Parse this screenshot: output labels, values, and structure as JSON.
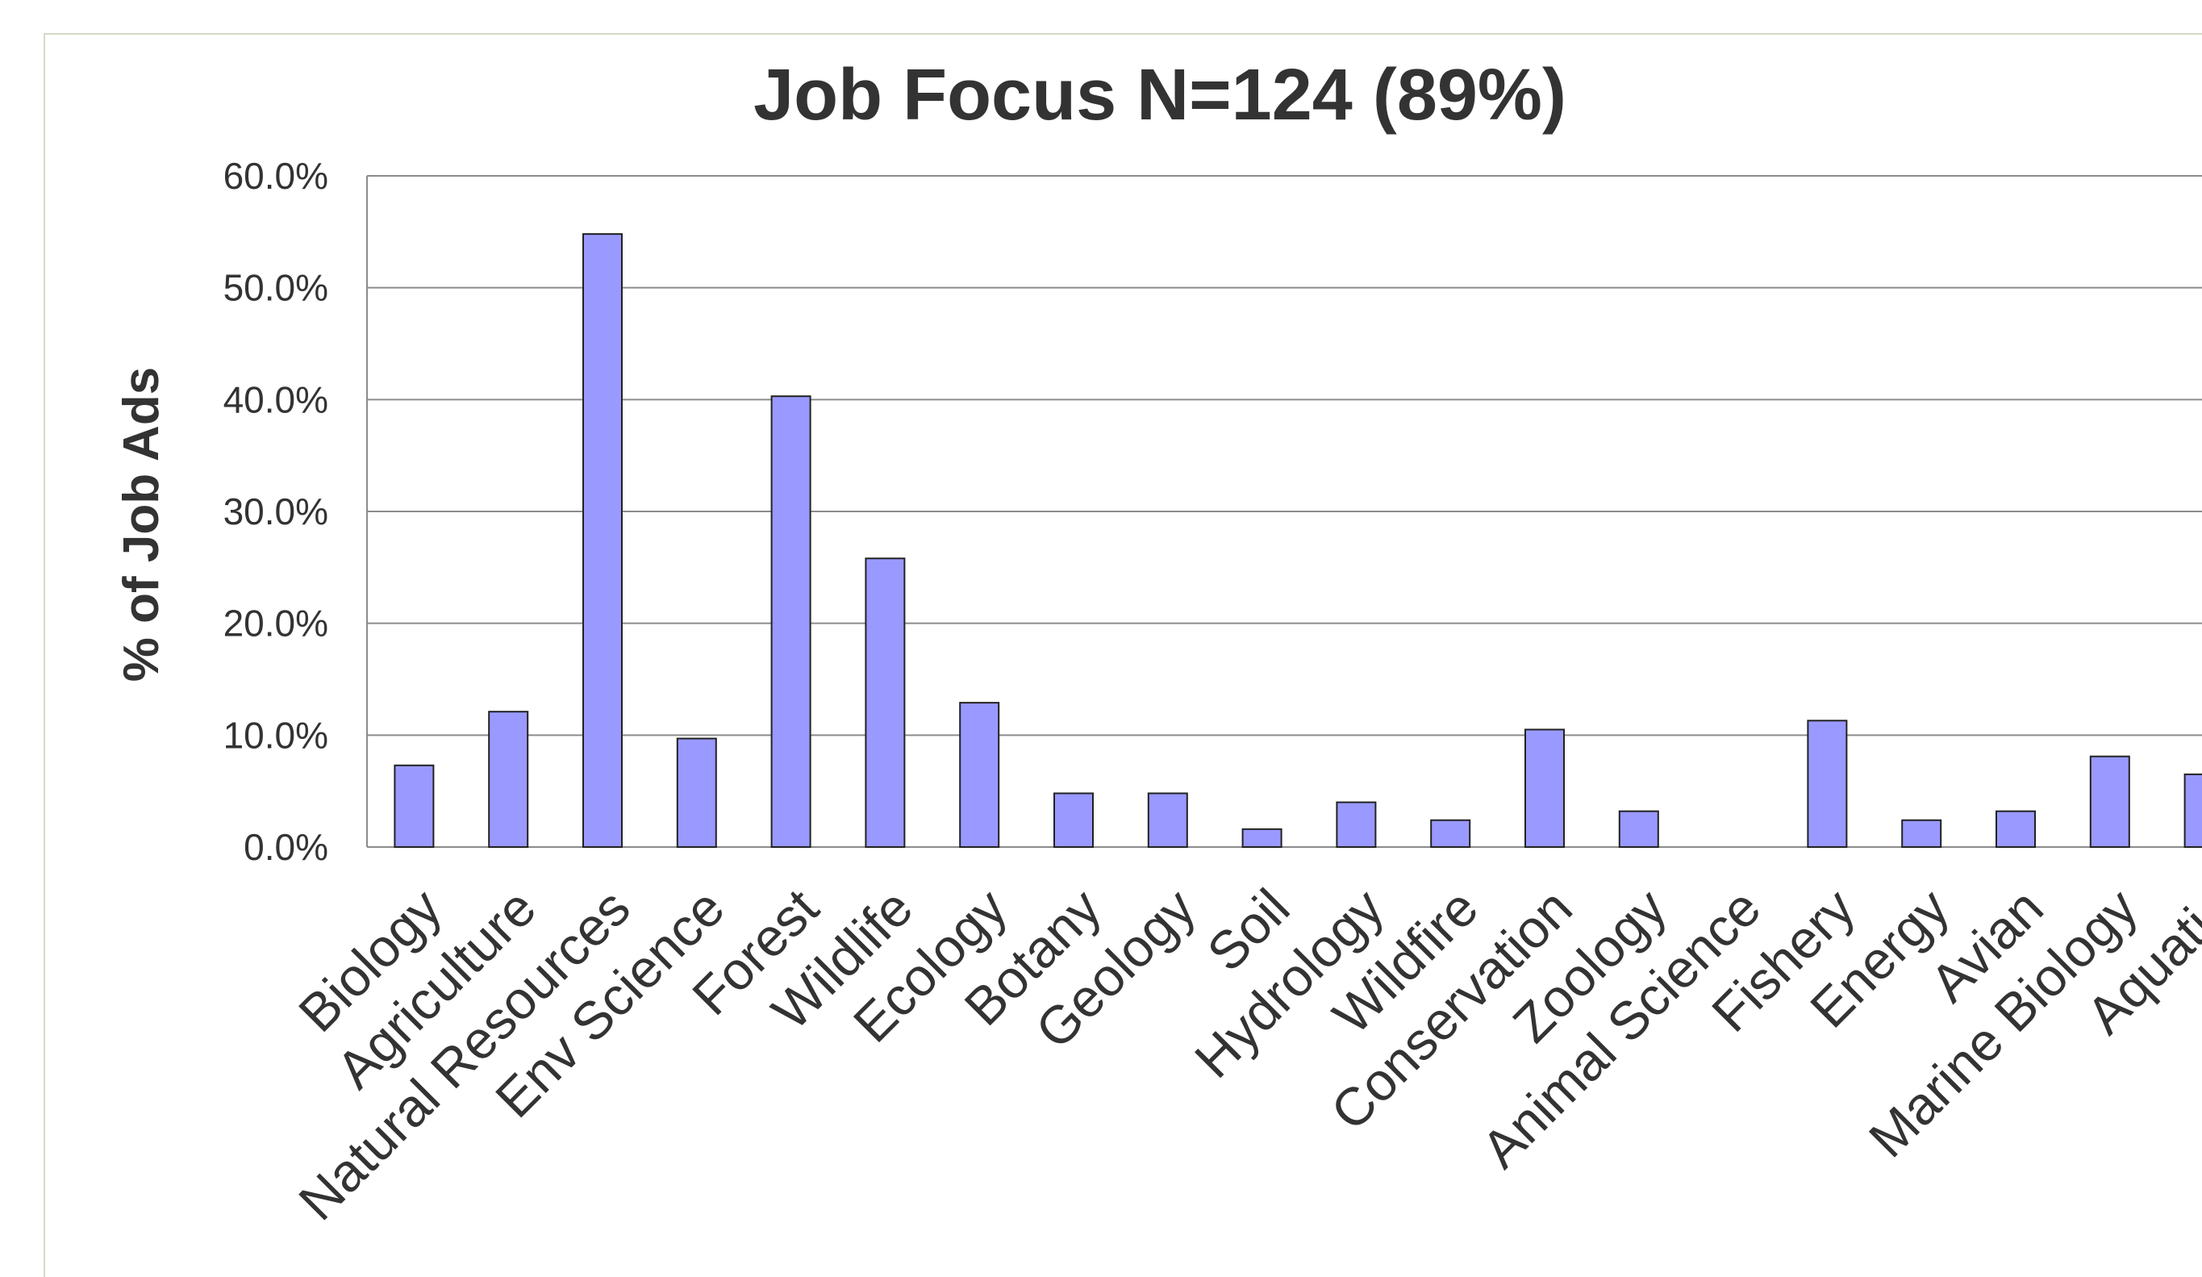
{
  "colors": {
    "bar_fill": "#9999ff",
    "bar_stroke": "#222222",
    "grid": "#8c8c8c",
    "text": "#333333",
    "frame": "#d4dcc4"
  },
  "chart_data": {
    "type": "bar",
    "title": "Job Focus N=124 (89%)",
    "xlabel": "",
    "ylabel": "% of Job Ads",
    "ylim": [
      0,
      60
    ],
    "grid": true,
    "yticks": [
      "0.0%",
      "10.0%",
      "20.0%",
      "30.0%",
      "40.0%",
      "50.0%",
      "60.0%"
    ],
    "categories": [
      "Biology",
      "Agriculture",
      "Natural Resources",
      "Env Science",
      "Forest",
      "Wildlife",
      "Ecology",
      "Botany",
      "Geology",
      "Soil",
      "Hydrology",
      "Wildfire",
      "Conservation",
      "Zoology",
      "Animal Science",
      "Fishery",
      "Energy",
      "Avian",
      "Marine Biology",
      "Aquatic"
    ],
    "values": [
      7.3,
      12.1,
      54.8,
      9.7,
      40.3,
      25.8,
      12.9,
      4.8,
      4.8,
      1.6,
      4.0,
      2.4,
      10.5,
      3.2,
      0.0,
      11.3,
      2.4,
      3.2,
      8.1,
      6.5
    ]
  }
}
